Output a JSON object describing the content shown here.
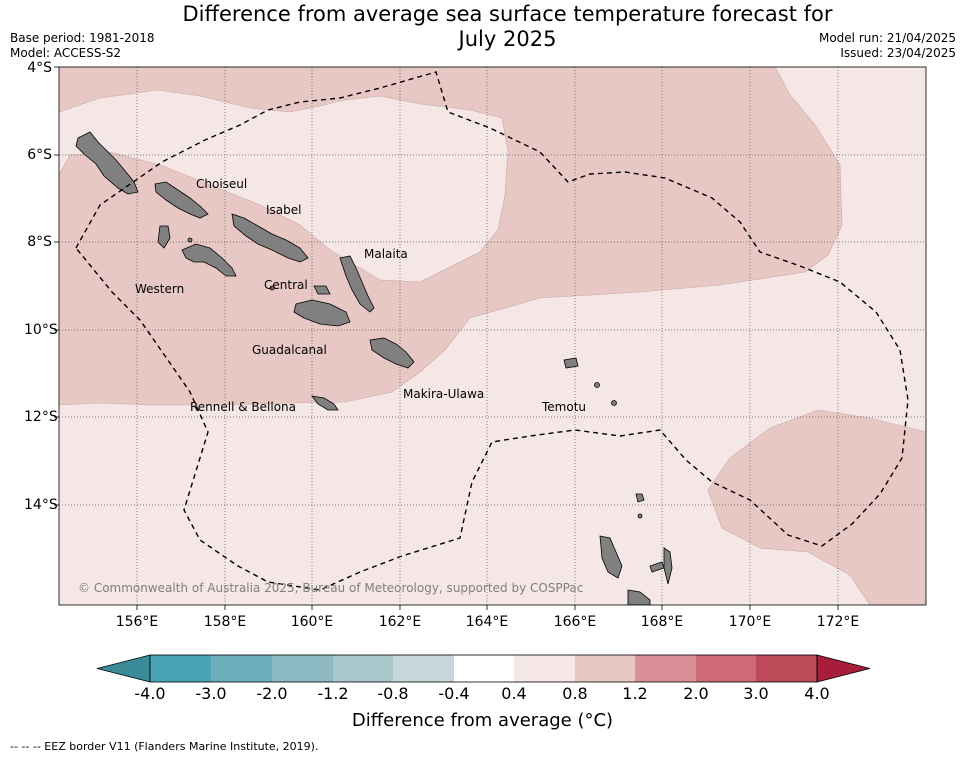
{
  "header": {
    "title_line1": "Difference from average sea surface temperature forecast for",
    "title_line2": "July 2025",
    "base_period": "Base period: 1981-2018",
    "model": "Model: ACCESS-S2",
    "model_run": "Model run: 21/04/2025",
    "issued": "Issued: 23/04/2025"
  },
  "map": {
    "lat_labels": [
      "4°S",
      "6°S",
      "8°S",
      "10°S",
      "12°S",
      "14°S"
    ],
    "lon_labels": [
      "156°E",
      "158°E",
      "160°E",
      "162°E",
      "164°E",
      "166°E",
      "168°E",
      "170°E",
      "172°E"
    ],
    "provinces": [
      "Choiseul",
      "Isabel",
      "Malaita",
      "Western",
      "Central",
      "Guadalcanal",
      "Makira-Ulawa",
      "Rennell & Bellona",
      "Temotu"
    ],
    "copyright": "© Commonwealth of Australia 2025, Bureau of Meteorology, supported by COSPPac",
    "colors": {
      "ocean_0_4_0_8": "#f4e7e6",
      "ocean_0_8_1_2": "#e8c8c4",
      "land": "#808080"
    }
  },
  "colorbar": {
    "ticks": [
      "-4.0",
      "-3.0",
      "-2.0",
      "-1.2",
      "-0.8",
      "-0.4",
      "0.4",
      "0.8",
      "1.2",
      "2.0",
      "3.0",
      "4.0"
    ],
    "colors": [
      "#3a8a97",
      "#4aa3b4",
      "#6eaebc",
      "#8db9c3",
      "#a9c7cb",
      "#c6d6da",
      "#ffffff",
      "#f4e7e6",
      "#e8c8c4",
      "#d98f98",
      "#cd6a76",
      "#bd4a59",
      "#a81e3a"
    ],
    "label": "Difference from average ($^\\circ$C)",
    "label_display": "Difference from average (°C)"
  },
  "footnote": "--  --  -- EEZ border V11 (Flanders Marine Institute, 2019)."
}
